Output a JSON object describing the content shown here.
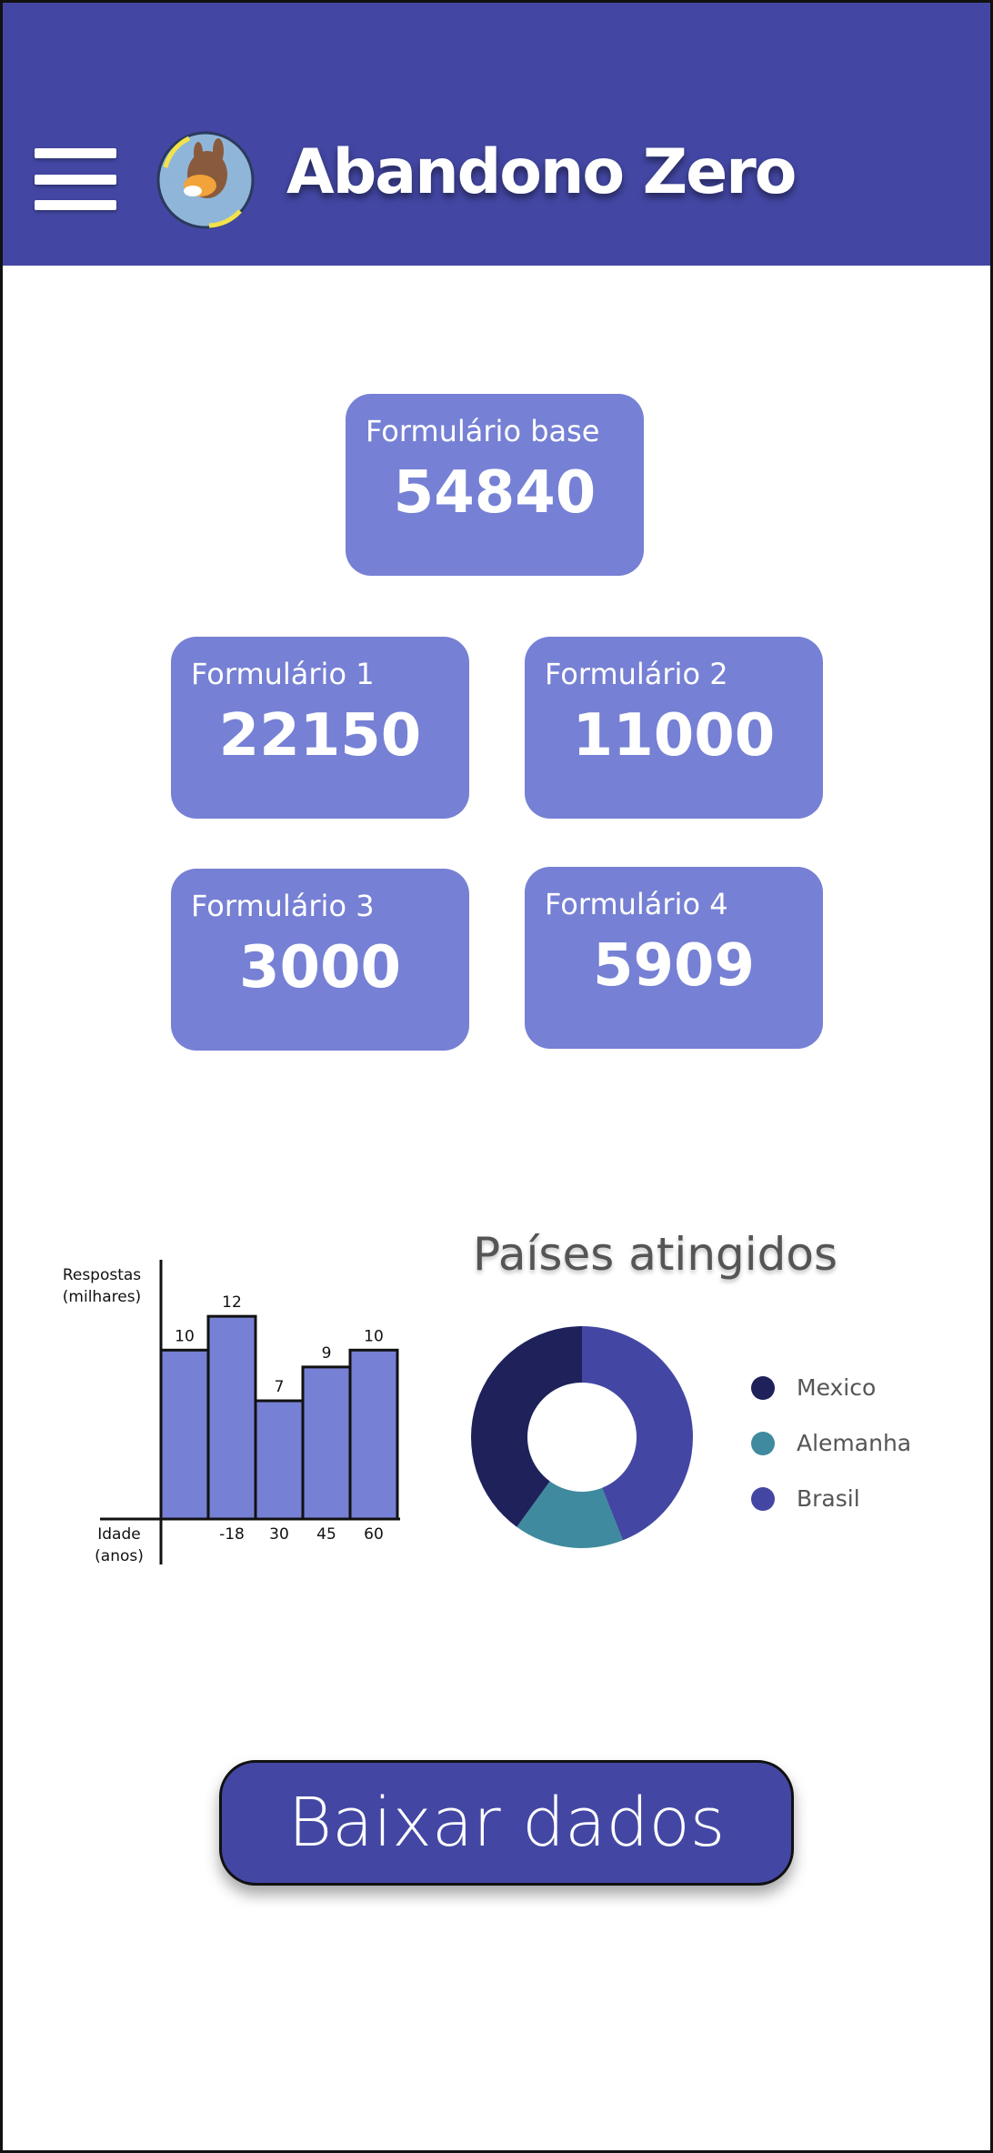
{
  "header": {
    "title": "Abandono Zero",
    "menu_icon": "hamburger-menu-icon",
    "logo": "project-logo"
  },
  "cards": [
    {
      "label": "Formulário base",
      "value": "54840"
    },
    {
      "label": "Formulário 1",
      "value": "22150"
    },
    {
      "label": "Formulário 2",
      "value": "11000"
    },
    {
      "label": "Formulário 3",
      "value": "3000"
    },
    {
      "label": "Formulário 4",
      "value": "5909"
    }
  ],
  "colors": {
    "header_bg": "#4347a3",
    "card_bg": "#7680d4",
    "bar_fill": "#7680d4",
    "button_bg": "#4347a3"
  },
  "chart_data": [
    {
      "type": "bar",
      "ylabel": "Respostas (milhares)",
      "ylabel_lines": [
        "Respostas",
        "(milhares)"
      ],
      "xlabel": "Idade (anos)",
      "xlabel_lines": [
        "Idade",
        "(anos)"
      ],
      "categories": [
        "",
        "-18",
        "30",
        "45",
        "60"
      ],
      "values": [
        10,
        12,
        7,
        9,
        10
      ],
      "ylim": [
        0,
        14
      ],
      "grid": false
    },
    {
      "type": "pie",
      "title": "Países atingidos",
      "labels": [
        "Mexico",
        "Alemanha",
        "Brasil"
      ],
      "values": [
        40,
        16,
        44
      ],
      "colors": [
        "#1e215a",
        "#3f8a9e",
        "#4347a3"
      ],
      "legend": "right"
    }
  ],
  "download_button": {
    "label": "Baixar dados"
  }
}
